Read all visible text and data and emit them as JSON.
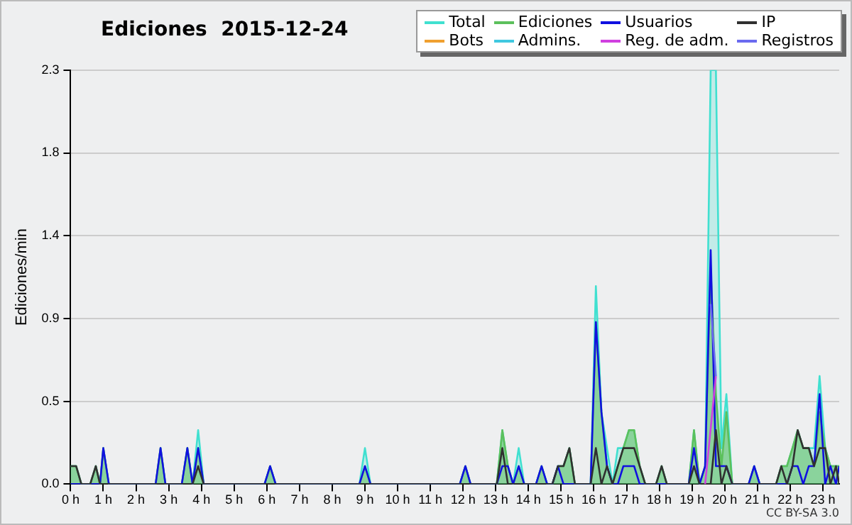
{
  "chart_data": {
    "type": "line",
    "title": "Ediciones  2015-12-24",
    "ylabel": "Ediciones/min",
    "annotations": [
      "CC BY-SA 3.0"
    ],
    "legend": "top right",
    "grid": "y",
    "marker": "none",
    "line_style": "solid",
    "xlim": [
      0,
      23.5
    ],
    "xticks": [
      {
        "value": 0,
        "label": "0 h"
      },
      {
        "value": 1,
        "label": "1 h"
      },
      {
        "value": 2,
        "label": "2 h"
      },
      {
        "value": 3,
        "label": "3 h"
      },
      {
        "value": 4,
        "label": "4 h"
      },
      {
        "value": 5,
        "label": "5 h"
      },
      {
        "value": 6,
        "label": "6 h"
      },
      {
        "value": 7,
        "label": "7 h"
      },
      {
        "value": 8,
        "label": "8 h"
      },
      {
        "value": 9,
        "label": "9 h"
      },
      {
        "value": 10,
        "label": "10 h"
      },
      {
        "value": 11,
        "label": "11 h"
      },
      {
        "value": 12,
        "label": "12 h"
      },
      {
        "value": 13,
        "label": "13 h"
      },
      {
        "value": 14,
        "label": "14 h"
      },
      {
        "value": 15,
        "label": "15 h"
      },
      {
        "value": 16,
        "label": "16 h"
      },
      {
        "value": 17,
        "label": "17 h"
      },
      {
        "value": 18,
        "label": "18 h"
      },
      {
        "value": 19,
        "label": "19 h"
      },
      {
        "value": 20,
        "label": "20 h"
      },
      {
        "value": 21,
        "label": "21 h"
      },
      {
        "value": 22,
        "label": "22 h"
      },
      {
        "value": 23,
        "label": "23 h"
      }
    ],
    "ylim": [
      0,
      2.3
    ],
    "yticks": [
      {
        "value": 0,
        "label": "0.0"
      },
      {
        "value": 0.46,
        "label": "0.5"
      },
      {
        "value": 0.92,
        "label": "0.9"
      },
      {
        "value": 1.38,
        "label": "1.4"
      },
      {
        "value": 1.84,
        "label": "1.8"
      },
      {
        "value": 2.3,
        "label": "2.3"
      }
    ],
    "x": [
      0,
      0.17,
      0.33,
      0.6,
      0.77,
      0.9,
      1.0,
      1.17,
      2.6,
      2.75,
      2.9,
      3.4,
      3.57,
      3.73,
      3.9,
      4.07,
      5.93,
      6.1,
      6.27,
      8.83,
      9.0,
      9.17,
      11.9,
      12.07,
      12.23,
      13.03,
      13.2,
      13.37,
      13.53,
      13.7,
      13.87,
      14.23,
      14.4,
      14.57,
      14.73,
      14.9,
      15.07,
      15.25,
      15.42,
      15.9,
      16.06,
      16.23,
      16.4,
      16.57,
      16.73,
      16.9,
      17.07,
      17.23,
      17.4,
      17.57,
      17.9,
      18.07,
      18.23,
      18.9,
      19.06,
      19.23,
      19.4,
      19.57,
      19.73,
      19.9,
      20.05,
      20.23,
      20.73,
      20.9,
      21.07,
      21.57,
      21.73,
      21.9,
      22.07,
      22.23,
      22.4,
      22.57,
      22.73,
      22.9,
      23.07,
      23.23,
      23.4,
      23.5
    ],
    "series": [
      {
        "name": "Total",
        "type": "area",
        "color": "#40e0d0",
        "values": [
          0.1,
          0.1,
          0,
          0,
          0.1,
          0,
          0.2,
          0,
          0,
          0.2,
          0,
          0,
          0.2,
          0,
          0.3,
          0,
          0,
          0.1,
          0,
          0,
          0.2,
          0,
          0,
          0.1,
          0,
          0,
          0.3,
          0.1,
          0,
          0.2,
          0,
          0,
          0.1,
          0,
          0,
          0.1,
          0.1,
          0.2,
          0,
          0,
          1.1,
          0.4,
          0.2,
          0,
          0.2,
          0.2,
          0.3,
          0.3,
          0.1,
          0,
          0,
          0.1,
          0,
          0,
          0.3,
          0,
          0.1,
          2.3,
          2.3,
          0.2,
          0.5,
          0,
          0,
          0.1,
          0,
          0,
          0.1,
          0.1,
          0.2,
          0.3,
          0.2,
          0.2,
          0.2,
          0.6,
          0.2,
          0.1,
          0.1,
          0.1
        ]
      },
      {
        "name": "Ediciones",
        "type": "area",
        "color": "#5cc05c",
        "values": [
          0.1,
          0.1,
          0,
          0,
          0.1,
          0,
          0.2,
          0,
          0,
          0.2,
          0,
          0,
          0.2,
          0,
          0.2,
          0,
          0,
          0.1,
          0,
          0,
          0.1,
          0,
          0,
          0.1,
          0,
          0,
          0.3,
          0.1,
          0,
          0.1,
          0,
          0,
          0.1,
          0,
          0,
          0.1,
          0.1,
          0.2,
          0,
          0,
          0.9,
          0.4,
          0.1,
          0,
          0.1,
          0.2,
          0.3,
          0.3,
          0.1,
          0,
          0,
          0.1,
          0,
          0,
          0.3,
          0,
          0.1,
          1.2,
          0.5,
          0.1,
          0.4,
          0,
          0,
          0.1,
          0,
          0,
          0.1,
          0.1,
          0.2,
          0.3,
          0.2,
          0.2,
          0.1,
          0.4,
          0.2,
          0.1,
          0.1,
          0.1
        ]
      },
      {
        "name": "Usuarios",
        "type": "line",
        "color": "#1010e0",
        "values": [
          0,
          0,
          0,
          0,
          0,
          0,
          0.2,
          0,
          0,
          0.2,
          0,
          0,
          0.2,
          0,
          0.2,
          0,
          0,
          0.1,
          0,
          0,
          0.1,
          0,
          0,
          0.1,
          0,
          0,
          0.1,
          0.1,
          0,
          0.1,
          0,
          0,
          0.1,
          0,
          0,
          0.1,
          0,
          0,
          0,
          0,
          0.9,
          0.4,
          0.1,
          0,
          0,
          0.1,
          0.1,
          0.1,
          0,
          0,
          0,
          0,
          0,
          0,
          0.2,
          0,
          0.1,
          1.3,
          0.1,
          0.1,
          0.1,
          0,
          0,
          0.1,
          0,
          0,
          0,
          0,
          0.1,
          0.1,
          0,
          0.1,
          0.1,
          0.5,
          0,
          0.1,
          0,
          0.1
        ]
      },
      {
        "name": "IP",
        "type": "line",
        "color": "#303030",
        "values": [
          0.1,
          0.1,
          0,
          0,
          0.1,
          0,
          0,
          0,
          0,
          0,
          0,
          0,
          0,
          0,
          0.1,
          0,
          0,
          0,
          0,
          0,
          0,
          0,
          0,
          0,
          0,
          0,
          0.2,
          0,
          0,
          0,
          0,
          0,
          0,
          0,
          0,
          0.1,
          0.1,
          0.2,
          0,
          0,
          0.2,
          0,
          0.1,
          0,
          0.1,
          0.2,
          0.2,
          0.2,
          0.1,
          0,
          0,
          0.1,
          0,
          0,
          0.1,
          0,
          0,
          0,
          0.3,
          0,
          0.1,
          0,
          0,
          0,
          0,
          0,
          0.1,
          0,
          0.1,
          0.3,
          0.2,
          0.2,
          0.1,
          0.2,
          0.2,
          0,
          0.1,
          0
        ]
      },
      {
        "name": "Bots",
        "type": "line",
        "color": "#f0a030",
        "values": [
          null,
          null,
          null,
          null,
          null,
          null,
          null,
          null,
          null,
          null,
          null,
          null,
          null,
          null,
          null,
          null,
          null,
          null,
          null,
          null,
          null,
          null,
          null,
          null,
          null,
          null,
          null,
          null,
          null,
          null,
          null,
          null,
          null,
          null,
          null,
          null,
          null,
          null,
          null,
          null,
          null,
          null,
          null,
          null,
          null,
          null,
          null,
          null,
          null,
          null,
          null,
          null,
          null,
          null,
          null,
          null,
          null,
          null,
          null,
          null,
          null,
          null,
          null,
          null,
          null,
          null,
          null,
          null,
          null,
          null,
          null,
          null,
          null,
          null,
          null,
          null,
          null,
          null
        ]
      },
      {
        "name": "Admins.",
        "type": "line",
        "color": "#40c8e0",
        "values": [
          null,
          null,
          null,
          null,
          null,
          null,
          null,
          null,
          null,
          null,
          null,
          null,
          null,
          null,
          null,
          null,
          null,
          null,
          null,
          null,
          null,
          null,
          null,
          null,
          null,
          null,
          null,
          null,
          null,
          null,
          null,
          null,
          null,
          null,
          null,
          null,
          null,
          null,
          null,
          null,
          null,
          null,
          null,
          null,
          null,
          null,
          null,
          null,
          null,
          null,
          null,
          null,
          null,
          null,
          null,
          null,
          null,
          null,
          null,
          null,
          null,
          null,
          null,
          null,
          null,
          null,
          null,
          null,
          null,
          null,
          null,
          null,
          null,
          null,
          null,
          null,
          null,
          null
        ]
      },
      {
        "name": "Reg. de adm.",
        "type": "line",
        "color": "#d040e0",
        "x": [
          19.4,
          19.73
        ],
        "values": [
          0,
          0.6
        ]
      },
      {
        "name": "Registros",
        "type": "line",
        "color": "#6a6af0",
        "x": [
          19.57,
          19.73
        ],
        "values": [
          1.0,
          0.6
        ]
      }
    ]
  }
}
